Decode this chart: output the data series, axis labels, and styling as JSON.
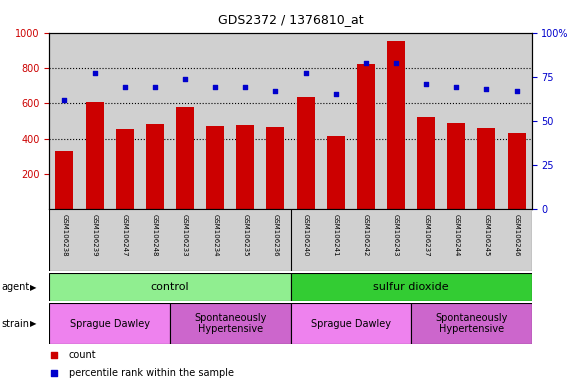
{
  "title": "GDS2372 / 1376810_at",
  "samples": [
    "GSM106238",
    "GSM106239",
    "GSM106247",
    "GSM106248",
    "GSM106233",
    "GSM106234",
    "GSM106235",
    "GSM106236",
    "GSM106240",
    "GSM106241",
    "GSM106242",
    "GSM106243",
    "GSM106237",
    "GSM106244",
    "GSM106245",
    "GSM106246"
  ],
  "counts": [
    330,
    608,
    455,
    485,
    580,
    470,
    475,
    465,
    638,
    415,
    820,
    950,
    520,
    490,
    460,
    432
  ],
  "percentiles": [
    62,
    77,
    69,
    69,
    74,
    69,
    69,
    67,
    77,
    65,
    83,
    83,
    71,
    69,
    68,
    67
  ],
  "bar_color": "#cc0000",
  "dot_color": "#0000cc",
  "ylim_left": [
    0,
    1000
  ],
  "ylim_right": [
    0,
    100
  ],
  "yticks_left": [
    200,
    400,
    600,
    800,
    1000
  ],
  "yticks_right": [
    0,
    25,
    50,
    75,
    100
  ],
  "ytick_right_labels": [
    "0",
    "25",
    "50",
    "75",
    "100%"
  ],
  "grid_dotlines_at": [
    400,
    600,
    800
  ],
  "bar_color_hex": "#cc0000",
  "dot_color_hex": "#0000cc",
  "agent_groups": [
    {
      "label": "control",
      "start": 0,
      "end": 8,
      "color": "#90ee90"
    },
    {
      "label": "sulfur dioxide",
      "start": 8,
      "end": 16,
      "color": "#33cc33"
    }
  ],
  "strain_groups": [
    {
      "label": "Sprague Dawley",
      "start": 0,
      "end": 4,
      "color": "#ee82ee"
    },
    {
      "label": "Spontaneously\nHypertensive",
      "start": 4,
      "end": 8,
      "color": "#cc66cc"
    },
    {
      "label": "Sprague Dawley",
      "start": 8,
      "end": 12,
      "color": "#ee82ee"
    },
    {
      "label": "Spontaneously\nHypertensive",
      "start": 12,
      "end": 16,
      "color": "#cc66cc"
    }
  ],
  "plot_bg": "#d0d0d0",
  "fig_bg": "#ffffff",
  "title_fontsize": 9,
  "tick_fontsize": 7,
  "label_fontsize": 7,
  "sample_fontsize": 5,
  "annotation_fontsize": 8
}
